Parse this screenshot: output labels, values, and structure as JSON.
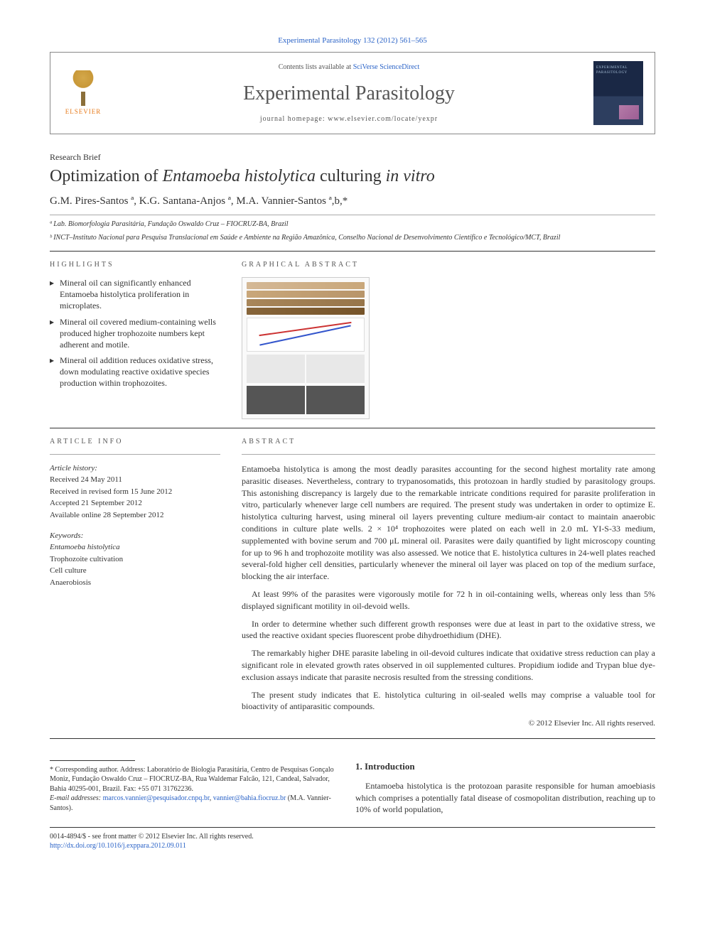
{
  "header": {
    "citation": "Experimental Parasitology 132 (2012) 561–565",
    "contents_prefix": "Contents lists available at ",
    "contents_link": "SciVerse ScienceDirect",
    "journal_name": "Experimental Parasitology",
    "homepage_prefix": "journal homepage: ",
    "homepage_url": "www.elsevier.com/locate/yexpr",
    "publisher": "ELSEVIER",
    "cover_label": "EXPERIMENTAL PARASITOLOGY"
  },
  "article": {
    "type": "Research Brief",
    "title_pre": "Optimization of ",
    "title_italic": "Entamoeba histolytica",
    "title_post": " culturing ",
    "title_italic2": "in vitro",
    "authors": "G.M. Pires-Santos ª, K.G. Santana-Anjos ª, M.A. Vannier-Santos ª,b,*",
    "aff_a": "ª Lab. Biomorfologia Parasitária, Fundação Oswaldo Cruz – FIOCRUZ-BA, Brazil",
    "aff_b": "ᵇ INCT–Instituto Nacional para Pesquisa Translacional em Saúde e Ambiente na Região Amazônica, Conselho Nacional de Desenvolvimento Científico e Tecnológico/MCT, Brazil"
  },
  "highlights": {
    "label": "HIGHLIGHTS",
    "items": [
      "Mineral oil can significantly enhanced Entamoeba histolytica proliferation in microplates.",
      "Mineral oil covered medium-containing wells produced higher trophozoite numbers kept adherent and motile.",
      "Mineral oil addition reduces oxidative stress, down modulating reactive oxidative species production within trophozoites."
    ]
  },
  "graphical": {
    "label": "GRAPHICAL ABSTRACT"
  },
  "article_info": {
    "label": "ARTICLE INFO",
    "history_label": "Article history:",
    "received": "Received 24 May 2011",
    "revised": "Received in revised form 15 June 2012",
    "accepted": "Accepted 21 September 2012",
    "online": "Available online 28 September 2012",
    "keywords_label": "Keywords:",
    "keywords": [
      "Entamoeba histolytica",
      "Trophozoite cultivation",
      "Cell culture",
      "Anaerobiosis"
    ]
  },
  "abstract": {
    "label": "ABSTRACT",
    "p1": "Entamoeba histolytica is among the most deadly parasites accounting for the second highest mortality rate among parasitic diseases. Nevertheless, contrary to trypanosomatids, this protozoan in hardly studied by parasitology groups. This astonishing discrepancy is largely due to the remarkable intricate conditions required for parasite proliferation in vitro, particularly whenever large cell numbers are required. The present study was undertaken in order to optimize E. histolytica culturing harvest, using mineral oil layers preventing culture medium-air contact to maintain anaerobic conditions in culture plate wells. 2 × 10⁴ trophozoites were plated on each well in 2.0 mL YI-S-33 medium, supplemented with bovine serum and 700 μL mineral oil. Parasites were daily quantified by light microscopy counting for up to 96 h and trophozoite motility was also assessed. We notice that E. histolytica cultures in 24-well plates reached several-fold higher cell densities, particularly whenever the mineral oil layer was placed on top of the medium surface, blocking the air interface.",
    "p2": "At least 99% of the parasites were vigorously motile for 72 h in oil-containing wells, whereas only less than 5% displayed significant motility in oil-devoid wells.",
    "p3": "In order to determine whether such different growth responses were due at least in part to the oxidative stress, we used the reactive oxidant species fluorescent probe dihydroethidium (DHE).",
    "p4": "The remarkably higher DHE parasite labeling in oil-devoid cultures indicate that oxidative stress reduction can play a significant role in elevated growth rates observed in oil supplemented cultures. Propidium iodide and Trypan blue dye-exclusion assays indicate that parasite necrosis resulted from the stressing conditions.",
    "p5": "The present study indicates that E. histolytica culturing in oil-sealed wells may comprise a valuable tool for bioactivity of antiparasitic compounds.",
    "copyright": "© 2012 Elsevier Inc. All rights reserved."
  },
  "intro": {
    "heading": "1. Introduction",
    "text": "Entamoeba histolytica is the protozoan parasite responsible for human amoebiasis which comprises a potentially fatal disease of cosmopolitan distribution, reaching up to 10% of world population,"
  },
  "footnotes": {
    "corresponding": "* Corresponding author. Address: Laboratório de Biologia Parasitária, Centro de Pesquisas Gonçalo Moniz, Fundação Oswaldo Cruz – FIOCRUZ-BA, Rua Waldemar Falcão, 121, Candeal, Salvador, Bahia 40295-001, Brazil. Fax: +55 071 31762236.",
    "email_label": "E-mail addresses: ",
    "email1": "marcos.vannier@pesquisador.cnpq.br",
    "email_sep": ", ",
    "email2": "vannier@bahia.fiocruz.br",
    "email_author": " (M.A. Vannier-Santos)."
  },
  "bottom": {
    "issn": "0014-4894/$ - see front matter © 2012 Elsevier Inc. All rights reserved.",
    "doi": "http://dx.doi.org/10.1016/j.exppara.2012.09.011"
  },
  "colors": {
    "link": "#2962c7",
    "text": "#333333",
    "elsevier_orange": "#e67817"
  }
}
